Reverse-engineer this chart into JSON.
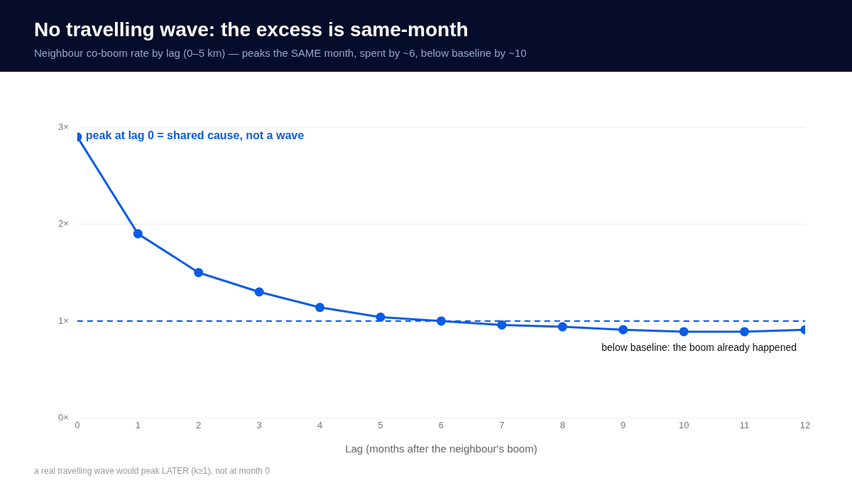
{
  "chart_data": {
    "type": "line",
    "title": "No travelling wave: the excess is same-month",
    "subtitle": "Neighbour co-boom rate by lag (0–5 km) — peaks the SAME month, spent by ~6, below baseline by ~10",
    "xlabel": "Lag (months after the neighbour's boom)",
    "x": [
      0,
      1,
      2,
      3,
      4,
      5,
      6,
      7,
      8,
      9,
      10,
      11,
      12
    ],
    "series": [
      {
        "color": "#0a5ce6",
        "values": [
          2.9,
          1.9,
          1.5,
          1.3,
          1.14,
          1.04,
          1.0,
          0.96,
          0.94,
          0.91,
          0.89,
          0.89,
          0.91
        ]
      }
    ],
    "xlim": [
      0,
      12
    ],
    "xticks": [
      0,
      1,
      2,
      3,
      4,
      5,
      6,
      7,
      8,
      9,
      10,
      11,
      12
    ],
    "ylim": [
      0,
      3
    ],
    "yticks": [
      {
        "value": 0,
        "label": "0×"
      },
      {
        "value": 1,
        "label": "1×"
      },
      {
        "value": 2,
        "label": "2×"
      },
      {
        "value": 3,
        "label": "3×"
      }
    ],
    "ref_lines": [
      {
        "axis": "y",
        "value": 1,
        "color": "#0a5ce6",
        "line_style": "dashed"
      }
    ],
    "annotations": [
      {
        "text": "peak at lag 0 = shared cause, not a wave",
        "x": 0,
        "y": 2.9
      },
      {
        "text": "below baseline: the boom already happened",
        "x": 12,
        "y": 0.91
      },
      "a real travelling wave would peak LATER (k≥1), not at month 0"
    ],
    "grid": "y",
    "marker": "circle",
    "line_style": "solid",
    "legend": false
  }
}
